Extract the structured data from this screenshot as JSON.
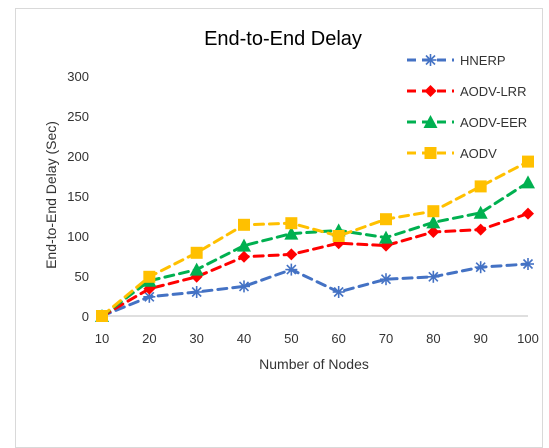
{
  "chart_data": {
    "type": "line",
    "title": "End-to-End Delay",
    "xlabel": "Number of Nodes",
    "ylabel": "End-to-End Delay (Sec)",
    "categories": [
      "10",
      "20",
      "30",
      "40",
      "50",
      "60",
      "70",
      "80",
      "90",
      "100"
    ],
    "ylim": [
      0,
      300
    ],
    "yticks": [
      0,
      50,
      100,
      150,
      200,
      250,
      300
    ],
    "grid": false,
    "legend_position": "top-right",
    "series": [
      {
        "name": "HNERP",
        "color": "#4472C4",
        "marker": "star",
        "values": [
          0,
          24,
          30,
          37,
          58,
          30,
          46,
          49,
          61,
          65
        ]
      },
      {
        "name": "AODV-LRR",
        "color": "#FF0000",
        "marker": "diamond",
        "values": [
          0,
          34,
          49,
          74,
          77,
          91,
          88,
          105,
          108,
          128
        ]
      },
      {
        "name": "AODV-EER",
        "color": "#00B050",
        "marker": "triangle",
        "values": [
          0,
          44,
          58,
          88,
          103,
          107,
          98,
          117,
          129,
          167
        ]
      },
      {
        "name": "AODV",
        "color": "#FFC000",
        "marker": "square",
        "values": [
          0,
          49,
          79,
          114,
          116,
          100,
          121,
          131,
          162,
          193
        ]
      }
    ]
  }
}
